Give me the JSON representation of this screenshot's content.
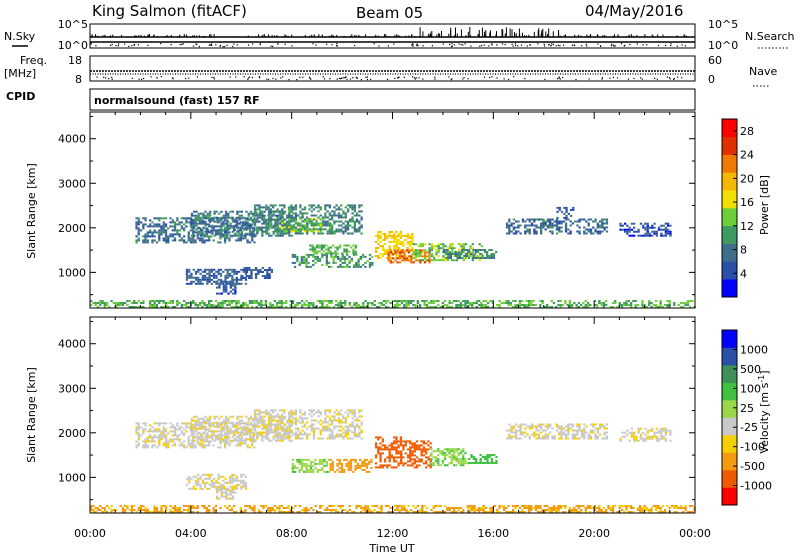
{
  "header": {
    "station": "King Salmon (fitACF)",
    "beam": "Beam 05",
    "date": "04/May/2016"
  },
  "strip_nsky": {
    "left_label": "N.Sky",
    "right_label": "N.Search",
    "left_ticks": [
      "10^5",
      "10^0"
    ],
    "right_ticks": [
      "10^5",
      "10^0"
    ]
  },
  "strip_freq": {
    "left_label_top": "Freq.",
    "left_label_unit": "[MHz]",
    "left_ticks": [
      "18",
      "8"
    ],
    "right_label": "Nave",
    "right_ticks": [
      "60",
      "0"
    ]
  },
  "cpid": {
    "label": "CPID",
    "value": "normalsound (fast) 157 RF"
  },
  "axes": {
    "ylabel": "Slant Range [km]",
    "xlabel": "Time UT",
    "yticks": [
      "1000",
      "2000",
      "3000",
      "4000"
    ],
    "xticks": [
      "00:00",
      "04:00",
      "08:00",
      "12:00",
      "16:00",
      "20:00",
      "00:00"
    ]
  },
  "colors": {
    "power": [
      "#0000ff",
      "#2a4fa8",
      "#3f6e8c",
      "#3e9a5e",
      "#6ccf3a",
      "#f0e000",
      "#f5b800",
      "#f07a00",
      "#e03000",
      "#ff0000"
    ],
    "velocity": [
      "#ff0000",
      "#f05a00",
      "#f39a10",
      "#f5d000",
      "#c8c8c8",
      "#9ad84a",
      "#40c040",
      "#3f8f5a",
      "#2a4fa8",
      "#0000ff"
    ]
  },
  "chart_data": [
    {
      "type": "heatmap",
      "title": "",
      "xlabel": "Time UT",
      "ylabel": "Slant Range [km]",
      "xlim": [
        0,
        24
      ],
      "ylim": [
        200,
        4600
      ],
      "colorbar": {
        "label": "Power [dB]",
        "ticks": [
          "4",
          "8",
          "12",
          "16",
          "20",
          "24",
          "28"
        ],
        "range": [
          0,
          30
        ]
      },
      "regions": [
        {
          "t0": 1.8,
          "t1": 6.5,
          "r0": 1650,
          "r1": 2200,
          "value": 7
        },
        {
          "t0": 4.0,
          "t1": 8.0,
          "r0": 1800,
          "r1": 2350,
          "value": 8
        },
        {
          "t0": 6.5,
          "t1": 10.8,
          "r0": 1850,
          "r1": 2500,
          "value": 9
        },
        {
          "t0": 7.5,
          "t1": 9.5,
          "r0": 1900,
          "r1": 2200,
          "value": 13
        },
        {
          "t0": 3.8,
          "t1": 6.2,
          "r0": 720,
          "r1": 1050,
          "value": 6
        },
        {
          "t0": 5.0,
          "t1": 5.8,
          "r0": 500,
          "r1": 800,
          "value": 5
        },
        {
          "t0": 6.0,
          "t1": 7.2,
          "r0": 850,
          "r1": 1100,
          "value": 6
        },
        {
          "t0": 8.0,
          "t1": 11.2,
          "r0": 1100,
          "r1": 1400,
          "value": 10
        },
        {
          "t0": 8.7,
          "t1": 10.5,
          "r0": 1400,
          "r1": 1600,
          "value": 12
        },
        {
          "t0": 11.3,
          "t1": 12.8,
          "r0": 1300,
          "r1": 1900,
          "value": 18
        },
        {
          "t0": 11.8,
          "t1": 13.5,
          "r0": 1200,
          "r1": 1500,
          "value": 24
        },
        {
          "t0": 12.8,
          "t1": 15.5,
          "r0": 1250,
          "r1": 1650,
          "value": 13
        },
        {
          "t0": 14.0,
          "t1": 16.1,
          "r0": 1300,
          "r1": 1500,
          "value": 9
        },
        {
          "t0": 16.5,
          "t1": 20.5,
          "r0": 1850,
          "r1": 2200,
          "value": 7
        },
        {
          "t0": 18.5,
          "t1": 19.2,
          "r0": 2200,
          "r1": 2450,
          "value": 6
        },
        {
          "t0": 21.0,
          "t1": 23.0,
          "r0": 1800,
          "r1": 2100,
          "value": 5
        },
        {
          "t0": 0.0,
          "t1": 24.0,
          "r0": 200,
          "r1": 380,
          "value": 12
        }
      ]
    },
    {
      "type": "heatmap",
      "title": "",
      "xlabel": "Time UT",
      "ylabel": "Slant Range [km]",
      "xlim": [
        0,
        24
      ],
      "ylim": [
        200,
        4600
      ],
      "colorbar": {
        "label": "Velocity [m s^-1]",
        "ticks": [
          "-1000",
          "-500",
          "-100",
          "-25",
          "25",
          "100",
          "500",
          "1000"
        ],
        "range": [
          -1000,
          1000
        ]
      },
      "regions": [
        {
          "t0": 1.8,
          "t1": 6.5,
          "r0": 1650,
          "r1": 2200,
          "value": 0
        },
        {
          "t0": 4.0,
          "t1": 8.0,
          "r0": 1800,
          "r1": 2350,
          "value": 0
        },
        {
          "t0": 6.5,
          "t1": 10.8,
          "r0": 1850,
          "r1": 2500,
          "value": 0
        },
        {
          "t0": 3.8,
          "t1": 6.2,
          "r0": 720,
          "r1": 1050,
          "value": 0
        },
        {
          "t0": 5.0,
          "t1": 5.8,
          "r0": 500,
          "r1": 800,
          "value": 0
        },
        {
          "t0": 8.0,
          "t1": 9.5,
          "r0": 1100,
          "r1": 1400,
          "value": 80
        },
        {
          "t0": 9.5,
          "t1": 11.2,
          "r0": 1100,
          "r1": 1400,
          "value": -60
        },
        {
          "t0": 11.3,
          "t1": 12.3,
          "r0": 1200,
          "r1": 1900,
          "value": -300
        },
        {
          "t0": 12.3,
          "t1": 13.5,
          "r0": 1200,
          "r1": 1800,
          "value": -150
        },
        {
          "t0": 13.5,
          "t1": 15.0,
          "r0": 1250,
          "r1": 1650,
          "value": 90
        },
        {
          "t0": 15.0,
          "t1": 16.1,
          "r0": 1300,
          "r1": 1500,
          "value": 200
        },
        {
          "t0": 16.5,
          "t1": 20.5,
          "r0": 1850,
          "r1": 2200,
          "value": 0
        },
        {
          "t0": 21.0,
          "t1": 23.0,
          "r0": 1800,
          "r1": 2100,
          "value": 0
        },
        {
          "t0": 0.0,
          "t1": 24.0,
          "r0": 200,
          "r1": 380,
          "value": -30
        }
      ]
    }
  ]
}
